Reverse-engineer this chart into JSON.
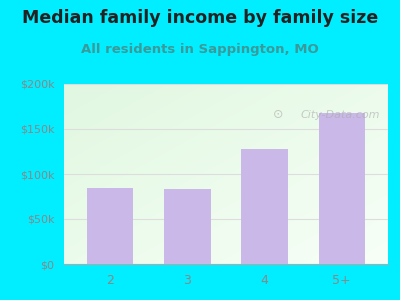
{
  "title": "Median family income by family size",
  "subtitle": "All residents in Sappington, MO",
  "categories": [
    "2",
    "3",
    "4",
    "5+"
  ],
  "values": [
    85000,
    83000,
    128000,
    168000
  ],
  "bar_color": "#c9b8e8",
  "title_fontsize": 12.5,
  "subtitle_fontsize": 9.5,
  "subtitle_color": "#3a9a9a",
  "title_color": "#222222",
  "background_outer": "#00eeff",
  "plot_bg_topleft": [
    0.88,
    0.97,
    0.88
  ],
  "plot_bg_bottomright": [
    0.97,
    1.0,
    0.97
  ],
  "ylim": [
    0,
    200000
  ],
  "yticks": [
    0,
    50000,
    100000,
    150000,
    200000
  ],
  "ytick_labels": [
    "$0",
    "$50k",
    "$100k",
    "$150k",
    "$200k"
  ],
  "tick_label_color": "#888888",
  "watermark": "City-Data.com",
  "watermark_color": "#aaaaaa",
  "watermark_alpha": 0.6,
  "grid_color": "#dddddd"
}
